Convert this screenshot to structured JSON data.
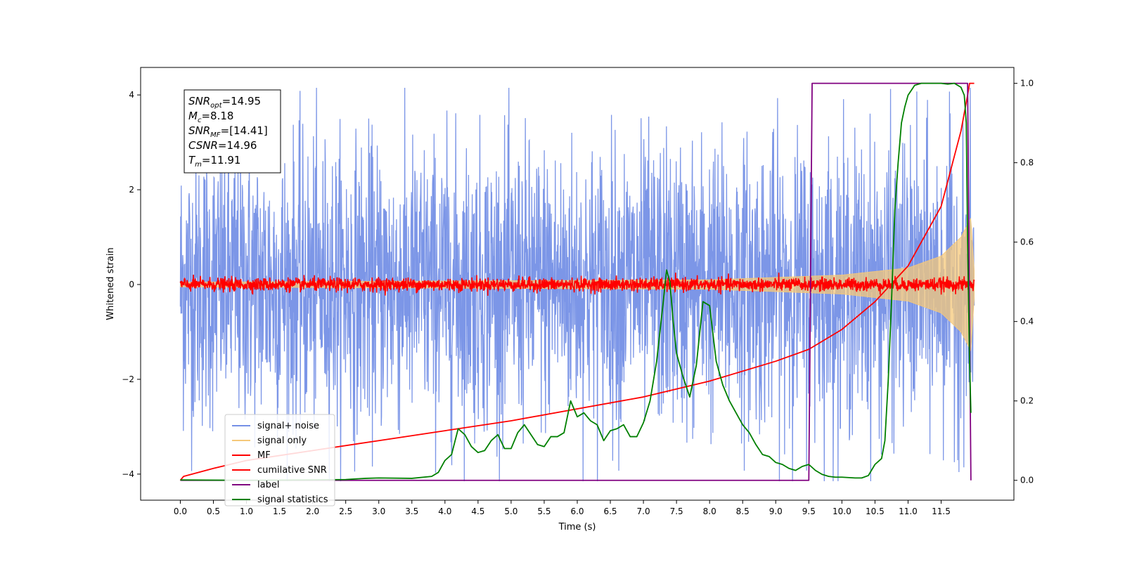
{
  "chart_data": {
    "type": "line",
    "xlabel": "Time (s)",
    "ylabel_left": "Whitened strain",
    "x_ticks": [
      0.0,
      0.5,
      1.0,
      1.5,
      2.0,
      2.5,
      3.0,
      3.5,
      4.0,
      4.5,
      5.0,
      5.5,
      6.0,
      6.5,
      7.0,
      7.5,
      8.0,
      8.5,
      9.0,
      9.5,
      10.0,
      10.5,
      11.0,
      11.5
    ],
    "x_tick_labels": [
      "0.0",
      "0.5",
      "1.0",
      "1.5",
      "2.0",
      "2.5",
      "3.0",
      "3.5",
      "4.0",
      "4.5",
      "5.0",
      "5.5",
      "6.0",
      "6.5",
      "7.0",
      "7.5",
      "8.0",
      "8.5",
      "9.0",
      "9.5",
      "10.0",
      "10.5",
      "11.0",
      "11.5"
    ],
    "xlim": [
      -0.6,
      12.6
    ],
    "ylim_left": [
      -4.55,
      4.58
    ],
    "y_left_ticks": [
      -4,
      -2,
      0,
      2,
      4
    ],
    "y_left_tick_labels": [
      "−4",
      "−2",
      "0",
      "2",
      "4"
    ],
    "ylim_right": [
      -0.05,
      1.04
    ],
    "y_right_ticks": [
      0.0,
      0.2,
      0.4,
      0.6,
      0.8,
      1.0
    ],
    "y_right_tick_labels": [
      "0.0",
      "0.2",
      "0.4",
      "0.6",
      "0.8",
      "1.0"
    ],
    "grid": false,
    "legend_position": "lower-left",
    "annotation_box": {
      "position": "top-left",
      "lines": [
        {
          "var": "SNR",
          "sub": "opt",
          "value": "=14.95"
        },
        {
          "var": "M",
          "sub": "c",
          "value": "=8.18"
        },
        {
          "var": "SNR",
          "sub": "MF",
          "value": "=[14.41]"
        },
        {
          "var": "CSNR",
          "sub": "",
          "value": "=14.96"
        },
        {
          "var": "T",
          "sub": "m",
          "value": "=11.91"
        }
      ]
    },
    "series": [
      {
        "name": "signal+ noise",
        "axis": "left",
        "color": "#7590e6",
        "kind": "noise",
        "noise_amplitude": 1.5,
        "noise_max": 4.15,
        "time_range": [
          0.0,
          12.0
        ]
      },
      {
        "name": "signal only",
        "axis": "left",
        "color": "#f5c87a",
        "kind": "chirp_envelope",
        "time_range": [
          0.0,
          12.0
        ],
        "envelope": {
          "x": [
            0.0,
            8.0,
            10.0,
            11.0,
            11.5,
            11.8,
            11.95,
            12.0
          ],
          "y": [
            0.05,
            0.1,
            0.2,
            0.35,
            0.6,
            1.0,
            1.4,
            0.3
          ]
        }
      },
      {
        "name": "MF",
        "axis": "left",
        "color": "#ff0000",
        "kind": "noise",
        "noise_amplitude": 0.07,
        "noise_max": 0.3,
        "time_range": [
          0.0,
          12.0
        ]
      },
      {
        "name": "cumilative SNR",
        "axis": "right",
        "color": "#ff0000",
        "x": [
          0.0,
          0.05,
          0.5,
          1.0,
          2.0,
          3.0,
          4.0,
          5.0,
          6.0,
          7.0,
          8.0,
          9.0,
          9.5,
          10.0,
          10.5,
          11.0,
          11.5,
          11.8,
          11.9,
          11.93,
          12.0
        ],
        "y": [
          0.0,
          0.01,
          0.03,
          0.05,
          0.075,
          0.1,
          0.125,
          0.15,
          0.18,
          0.21,
          0.25,
          0.3,
          0.33,
          0.38,
          0.45,
          0.54,
          0.69,
          0.88,
          0.97,
          1.0,
          1.0
        ]
      },
      {
        "name": "label",
        "axis": "right",
        "color": "#800080",
        "x": [
          0.0,
          9.5,
          9.55,
          11.9,
          11.95
        ],
        "y": [
          0.0,
          0.0,
          1.0,
          1.0,
          0.0
        ]
      },
      {
        "name": "signal statistics",
        "axis": "right",
        "color": "#008000",
        "x": [
          0.0,
          1.0,
          2.0,
          2.5,
          2.8,
          3.0,
          3.5,
          3.8,
          3.9,
          4.0,
          4.1,
          4.2,
          4.3,
          4.4,
          4.5,
          4.6,
          4.7,
          4.8,
          4.9,
          5.0,
          5.1,
          5.2,
          5.3,
          5.4,
          5.5,
          5.6,
          5.7,
          5.8,
          5.9,
          6.0,
          6.1,
          6.2,
          6.3,
          6.4,
          6.5,
          6.6,
          6.7,
          6.8,
          6.9,
          7.0,
          7.1,
          7.2,
          7.3,
          7.35,
          7.4,
          7.45,
          7.5,
          7.6,
          7.7,
          7.8,
          7.9,
          8.0,
          8.1,
          8.2,
          8.3,
          8.4,
          8.5,
          8.6,
          8.7,
          8.8,
          8.9,
          9.0,
          9.1,
          9.2,
          9.3,
          9.4,
          9.5,
          9.6,
          9.7,
          9.8,
          9.9,
          10.0,
          10.2,
          10.3,
          10.4,
          10.5,
          10.6,
          10.65,
          10.7,
          10.75,
          10.8,
          10.85,
          10.9,
          10.95,
          11.0,
          11.1,
          11.2,
          11.3,
          11.5,
          11.6,
          11.7,
          11.8,
          11.85,
          11.88,
          11.9,
          11.93,
          11.95
        ],
        "y": [
          0.001,
          0.0,
          0.001,
          0.002,
          0.005,
          0.006,
          0.005,
          0.01,
          0.02,
          0.05,
          0.065,
          0.13,
          0.115,
          0.085,
          0.07,
          0.075,
          0.1,
          0.115,
          0.08,
          0.08,
          0.12,
          0.14,
          0.115,
          0.09,
          0.085,
          0.11,
          0.11,
          0.12,
          0.2,
          0.16,
          0.17,
          0.15,
          0.14,
          0.1,
          0.125,
          0.13,
          0.14,
          0.11,
          0.11,
          0.145,
          0.2,
          0.3,
          0.45,
          0.53,
          0.5,
          0.4,
          0.32,
          0.26,
          0.21,
          0.29,
          0.45,
          0.44,
          0.3,
          0.24,
          0.2,
          0.17,
          0.14,
          0.12,
          0.09,
          0.065,
          0.06,
          0.045,
          0.04,
          0.03,
          0.025,
          0.035,
          0.04,
          0.025,
          0.015,
          0.01,
          0.008,
          0.008,
          0.006,
          0.006,
          0.012,
          0.04,
          0.055,
          0.1,
          0.25,
          0.45,
          0.68,
          0.8,
          0.9,
          0.94,
          0.97,
          0.995,
          1.0,
          1.0,
          1.0,
          0.998,
          1.0,
          0.99,
          0.97,
          0.9,
          0.6,
          0.3,
          0.17
        ]
      }
    ]
  }
}
